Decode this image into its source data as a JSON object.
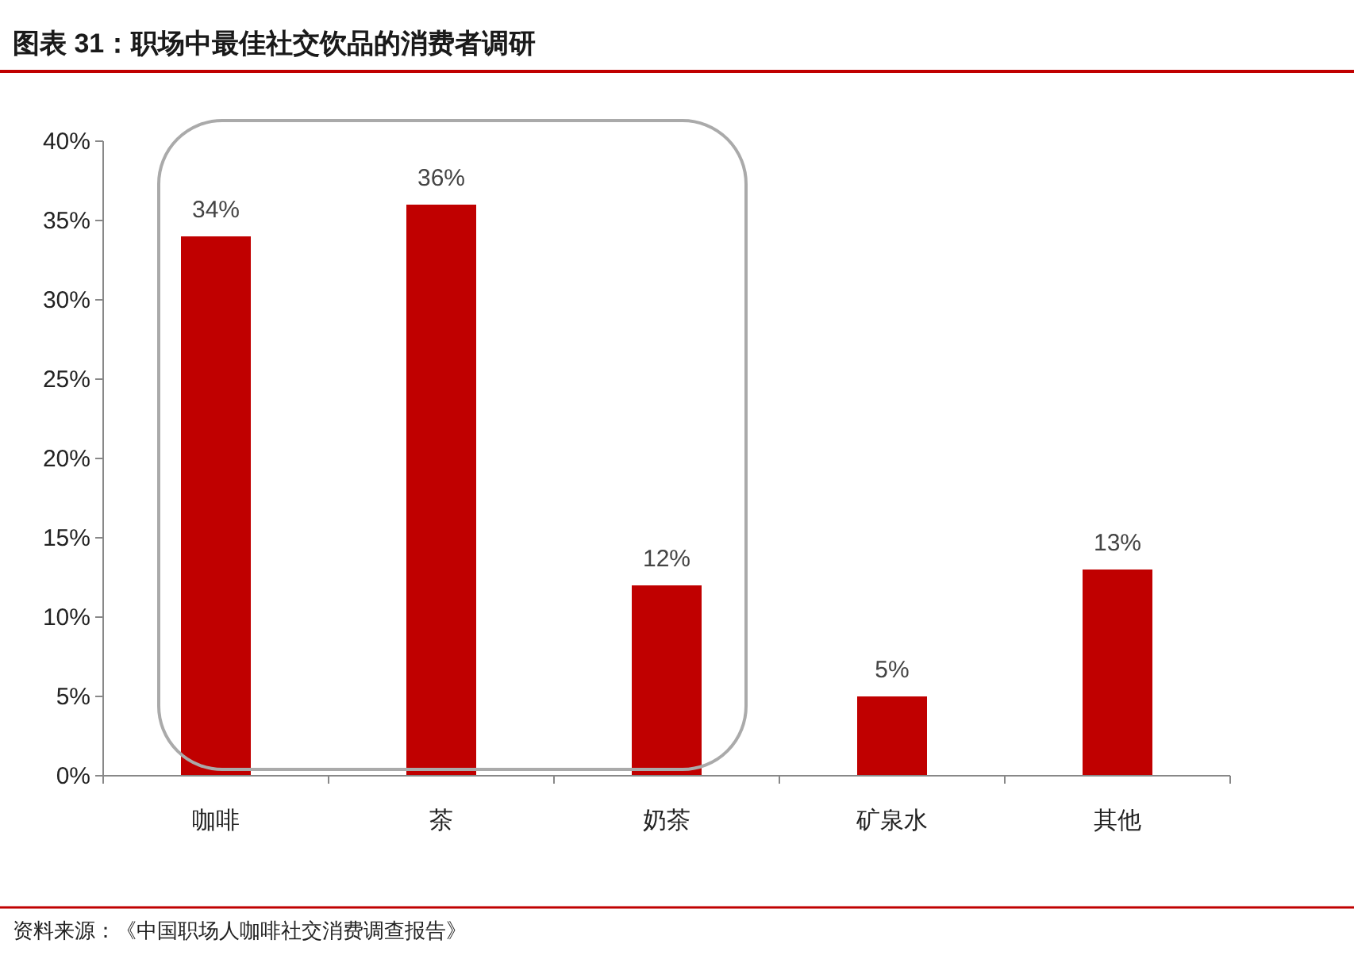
{
  "chart_data": {
    "type": "bar",
    "title": "图表 31：职场中最佳社交饮品的消费者调研",
    "categories": [
      "咖啡",
      "茶",
      "奶茶",
      "矿泉水",
      "其他"
    ],
    "values": [
      34,
      36,
      12,
      5,
      13
    ],
    "value_labels": [
      "34%",
      "36%",
      "12%",
      "5%",
      "13%"
    ],
    "color": "#c00000",
    "ylim": [
      0,
      40
    ],
    "yticks": [
      {
        "value": 0,
        "label": "0%"
      },
      {
        "value": 5,
        "label": "5%"
      },
      {
        "value": 10,
        "label": "10%"
      },
      {
        "value": 15,
        "label": "15%"
      },
      {
        "value": 20,
        "label": "20%"
      },
      {
        "value": 25,
        "label": "25%"
      },
      {
        "value": 30,
        "label": "30%"
      },
      {
        "value": 35,
        "label": "35%"
      },
      {
        "value": 40,
        "label": "40%"
      }
    ],
    "grid": false,
    "annotations": [
      "资料来源：《中国职场人咖啡社交消费调查报告》"
    ]
  }
}
